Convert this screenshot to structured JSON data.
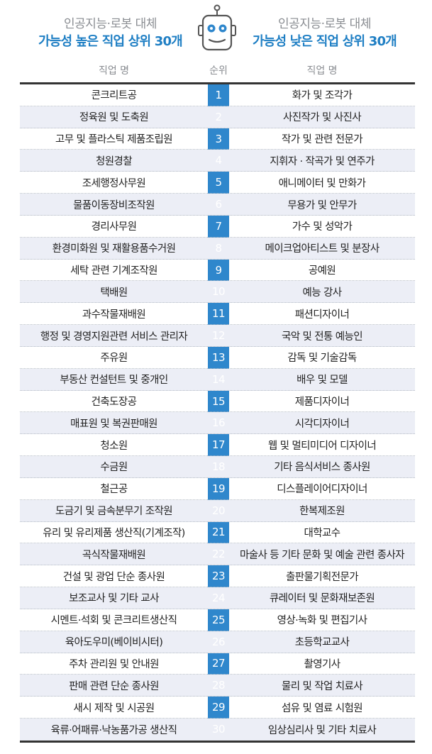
{
  "header": {
    "left_sub": "인공지능·로봇 대체",
    "left_main": "가능성 높은 직업 상위 30개",
    "right_sub": "인공지능·로봇 대체",
    "right_main": "가능성 낮은 직업 상위 30개"
  },
  "columns": {
    "high": "직업 명",
    "rank": "순위",
    "low": "직업 명"
  },
  "colors": {
    "accent": "#1f7fc4",
    "rank_bar": "#2f87cc",
    "row_shade": "#eceef6"
  },
  "rows": [
    {
      "rank": "1",
      "high": "콘크리트공",
      "low": "화가 및 조각가"
    },
    {
      "rank": "2",
      "high": "정육원 및 도축원",
      "low": "사진작가 및 사진사"
    },
    {
      "rank": "3",
      "high": "고무 및 플라스틱 제품조립원",
      "low": "작가 및 관련 전문가"
    },
    {
      "rank": "4",
      "high": "청원경찰",
      "low": "지휘자 · 작곡가 및 연주가"
    },
    {
      "rank": "5",
      "high": "조세행정사무원",
      "low": "애니메이터 및 만화가"
    },
    {
      "rank": "6",
      "high": "물품이동장비조작원",
      "low": "무용가 및 안무가"
    },
    {
      "rank": "7",
      "high": "경리사무원",
      "low": "가수 및 성악가"
    },
    {
      "rank": "8",
      "high": "환경미화원 및 재활용품수거원",
      "low": "메이크업아티스트 및 분장사"
    },
    {
      "rank": "9",
      "high": "세탁 관련 기계조작원",
      "low": "공예원"
    },
    {
      "rank": "10",
      "high": "택배원",
      "low": "예능 강사"
    },
    {
      "rank": "11",
      "high": "과수작물재배원",
      "low": "패션디자이너"
    },
    {
      "rank": "12",
      "high": "행정 및 경영지원관련 서비스 관리자",
      "low": "국악 및 전통 예능인"
    },
    {
      "rank": "13",
      "high": "주유원",
      "low": "감독 및 기술감독"
    },
    {
      "rank": "14",
      "high": "부동산 컨설턴트 및 중개인",
      "low": "배우 및 모델"
    },
    {
      "rank": "15",
      "high": "건축도장공",
      "low": "제품디자이너"
    },
    {
      "rank": "16",
      "high": "매표원 및 복권판매원",
      "low": "시각디자이너"
    },
    {
      "rank": "17",
      "high": "청소원",
      "low": "웹 및 멀티미디어 디자이너"
    },
    {
      "rank": "18",
      "high": "수금원",
      "low": "기타 음식서비스 종사원"
    },
    {
      "rank": "19",
      "high": "철근공",
      "low": "디스플레이어디자이너"
    },
    {
      "rank": "20",
      "high": "도금기 및 금속분무기 조작원",
      "low": "한복제조원"
    },
    {
      "rank": "21",
      "high": "유리 및 유리제품 생산직(기계조작)",
      "low": "대학교수"
    },
    {
      "rank": "22",
      "high": "곡식작물재배원",
      "low": "마술사 등 기타 문화 및 예술 관련 종사자"
    },
    {
      "rank": "23",
      "high": "건설 및 광업 단순 종사원",
      "low": "출판물기획전문가"
    },
    {
      "rank": "24",
      "high": "보조교사 및 기타 교사",
      "low": "큐레이터 및 문화재보존원"
    },
    {
      "rank": "25",
      "high": "시멘트·석회 및 콘크리트생산직",
      "low": "영상·녹화 및 편집기사"
    },
    {
      "rank": "26",
      "high": "육아도우미(베이비시터)",
      "low": "초등학교교사"
    },
    {
      "rank": "27",
      "high": "주차 관리원 및 안내원",
      "low": "촬영기사"
    },
    {
      "rank": "28",
      "high": "판매 관련 단순 종사원",
      "low": "물리 및 작업 치료사"
    },
    {
      "rank": "29",
      "high": "새시 제작 및 시공원",
      "low": "섬유 및 염료 시험원"
    },
    {
      "rank": "30",
      "high": "육류·어패류·낙농품가공 생산직",
      "low": "임상심리사 및 기타 치료사"
    }
  ]
}
